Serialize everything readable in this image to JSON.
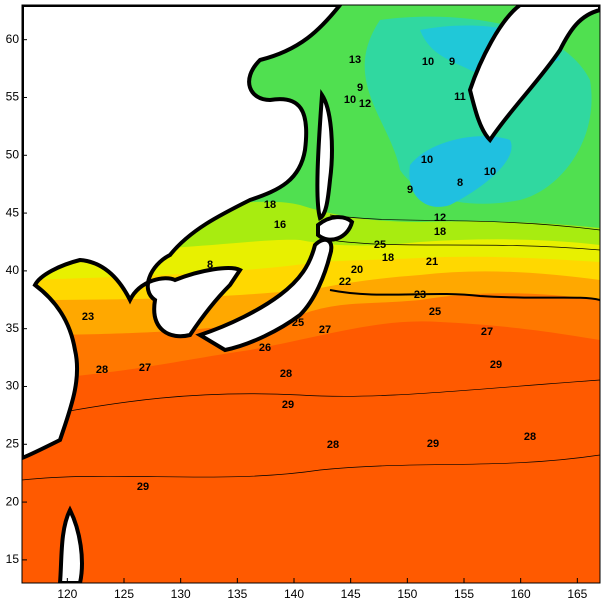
{
  "map": {
    "xlim": [
      116,
      167
    ],
    "ylim": [
      13,
      63
    ],
    "xticks": [
      120,
      125,
      130,
      135,
      140,
      145,
      150,
      155,
      160,
      165
    ],
    "yticks": [
      15,
      20,
      25,
      30,
      35,
      40,
      45,
      50,
      55,
      60
    ],
    "contour_labels": [
      "13",
      "10",
      "9",
      "9",
      "10",
      "12",
      "11",
      "10",
      "8",
      "10",
      "9",
      "12",
      "18",
      "18",
      "16",
      "8",
      "20",
      "18",
      "21",
      "22",
      "25",
      "23",
      "25",
      "27",
      "26",
      "27",
      "25",
      "28",
      "27",
      "28",
      "29",
      "29",
      "28",
      "29",
      "28",
      "29",
      "23"
    ]
  }
}
